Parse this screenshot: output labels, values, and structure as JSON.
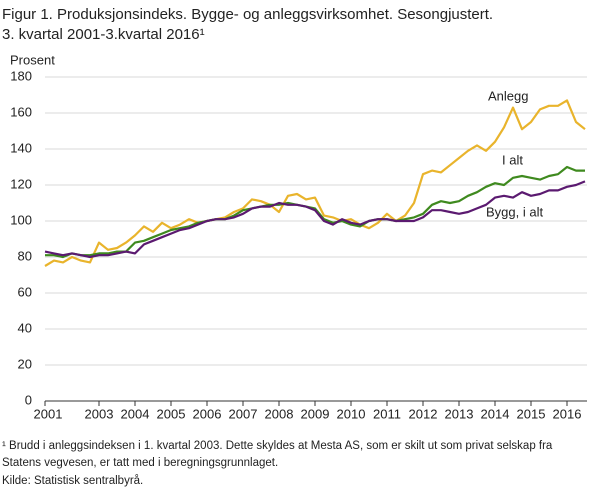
{
  "chart_data": {
    "type": "line",
    "title": [
      "Figur 1. Produksjonsindeks. Bygge- og anleggsvirksomhet. Sesongjustert.",
      "3. kvartal 2001-3.kvartal 2016¹"
    ],
    "ylabel": "Prosent",
    "categories": [
      "2001",
      null,
      null,
      null,
      null,
      null,
      "2003",
      null,
      null,
      null,
      "2004",
      null,
      null,
      null,
      "2005",
      null,
      null,
      null,
      "2006",
      null,
      null,
      null,
      "2007",
      null,
      null,
      null,
      "2008",
      null,
      null,
      null,
      "2009",
      null,
      null,
      null,
      "2010",
      null,
      null,
      null,
      "2011",
      null,
      null,
      null,
      "2012",
      null,
      null,
      null,
      "2013",
      null,
      null,
      null,
      "2014",
      null,
      null,
      null,
      "2015",
      null,
      null,
      null,
      "2016",
      null,
      null
    ],
    "series": [
      {
        "name": "Anlegg",
        "color": "#e9b42c",
        "values": [
          75,
          78,
          77,
          80,
          78,
          77,
          88,
          84,
          85,
          88,
          92,
          97,
          94,
          99,
          96,
          98,
          101,
          99,
          100,
          101,
          102,
          105,
          107,
          112,
          111,
          109,
          105,
          114,
          115,
          112,
          113,
          103,
          102,
          100,
          101,
          98,
          96,
          99,
          104,
          100,
          103,
          110,
          126,
          128,
          127,
          131,
          135,
          139,
          142,
          139,
          144,
          152,
          163,
          151,
          155,
          162,
          164,
          164,
          167,
          155,
          151
        ]
      },
      {
        "name": "I alt",
        "color": "#3f8a1f",
        "values": [
          81,
          81,
          80,
          82,
          81,
          81,
          82,
          82,
          83,
          83,
          88,
          89,
          91,
          93,
          95,
          96,
          97,
          99,
          100,
          101,
          101,
          103,
          106,
          107,
          108,
          109,
          109,
          110,
          109,
          108,
          107,
          101,
          99,
          100,
          98,
          97,
          100,
          101,
          101,
          100,
          101,
          102,
          104,
          109,
          111,
          110,
          111,
          114,
          116,
          119,
          121,
          120,
          124,
          125,
          124,
          123,
          125,
          126,
          130,
          128,
          128
        ]
      },
      {
        "name": "Bygg, i alt",
        "color": "#5b1a70",
        "values": [
          83,
          82,
          81,
          82,
          81,
          80,
          81,
          81,
          82,
          83,
          82,
          87,
          89,
          91,
          93,
          95,
          96,
          98,
          100,
          101,
          101,
          102,
          104,
          107,
          108,
          108,
          110,
          109,
          109,
          108,
          106,
          100,
          98,
          101,
          99,
          98,
          100,
          101,
          101,
          100,
          100,
          100,
          102,
          106,
          106,
          105,
          104,
          105,
          107,
          109,
          113,
          114,
          113,
          116,
          114,
          115,
          117,
          117,
          119,
          120,
          122
        ]
      }
    ],
    "ylim": [
      0,
      180
    ],
    "yticks": [
      0,
      20,
      40,
      60,
      80,
      100,
      120,
      140,
      160,
      180
    ],
    "grid": true,
    "footnote": [
      "¹ Brudd i anleggsindeksen i 1. kvartal 2003. Dette skyldes at Mesta AS, som er skilt ut som privat selskap fra",
      "Statens vegvesen, er tatt med i beregningsgrunnlaget."
    ],
    "source": "Kilde: Statistisk sentralbyrå."
  }
}
